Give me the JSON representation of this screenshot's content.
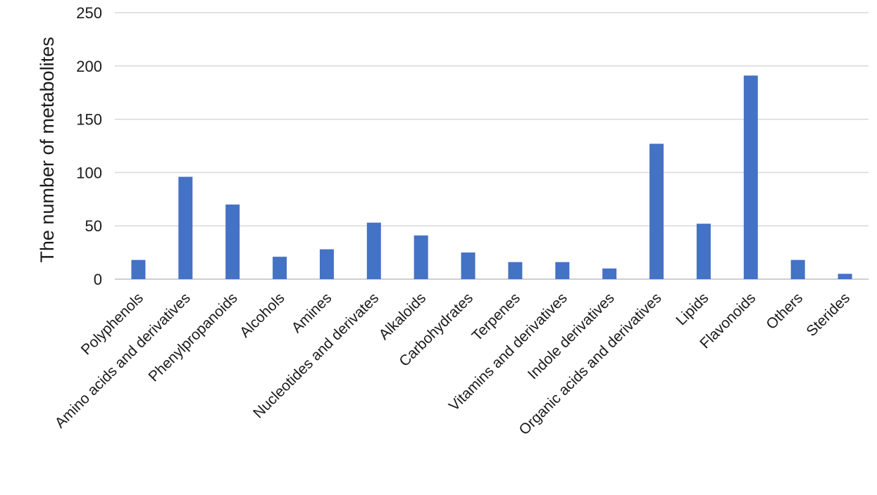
{
  "chart_data": {
    "type": "bar",
    "title": "",
    "xlabel": "",
    "ylabel": "The number of  metabolites",
    "ylim": [
      0,
      250
    ],
    "yticks": [
      0,
      50,
      100,
      150,
      200,
      250
    ],
    "grid": true,
    "legend": "none",
    "categories": [
      "Polyphenols",
      "Amino acids and derivatives",
      "Phenylpropanoids",
      "Alcohols",
      "Amines",
      "Nucleotides and derivates",
      "Alkaloids",
      "Carbohydrates",
      "Terpenes",
      "Vitamins and derivatives",
      "Indole derivatives",
      "Organic acids and derivatives",
      "Lipids",
      "Flavonoids",
      "Others",
      "Sterides"
    ],
    "values": [
      18,
      96,
      70,
      21,
      28,
      53,
      41,
      25,
      16,
      16,
      10,
      127,
      52,
      191,
      18,
      5
    ],
    "colors": {
      "bar": "#4472C4",
      "grid": "#d9d9d9",
      "text": "#1a1a1a"
    }
  }
}
